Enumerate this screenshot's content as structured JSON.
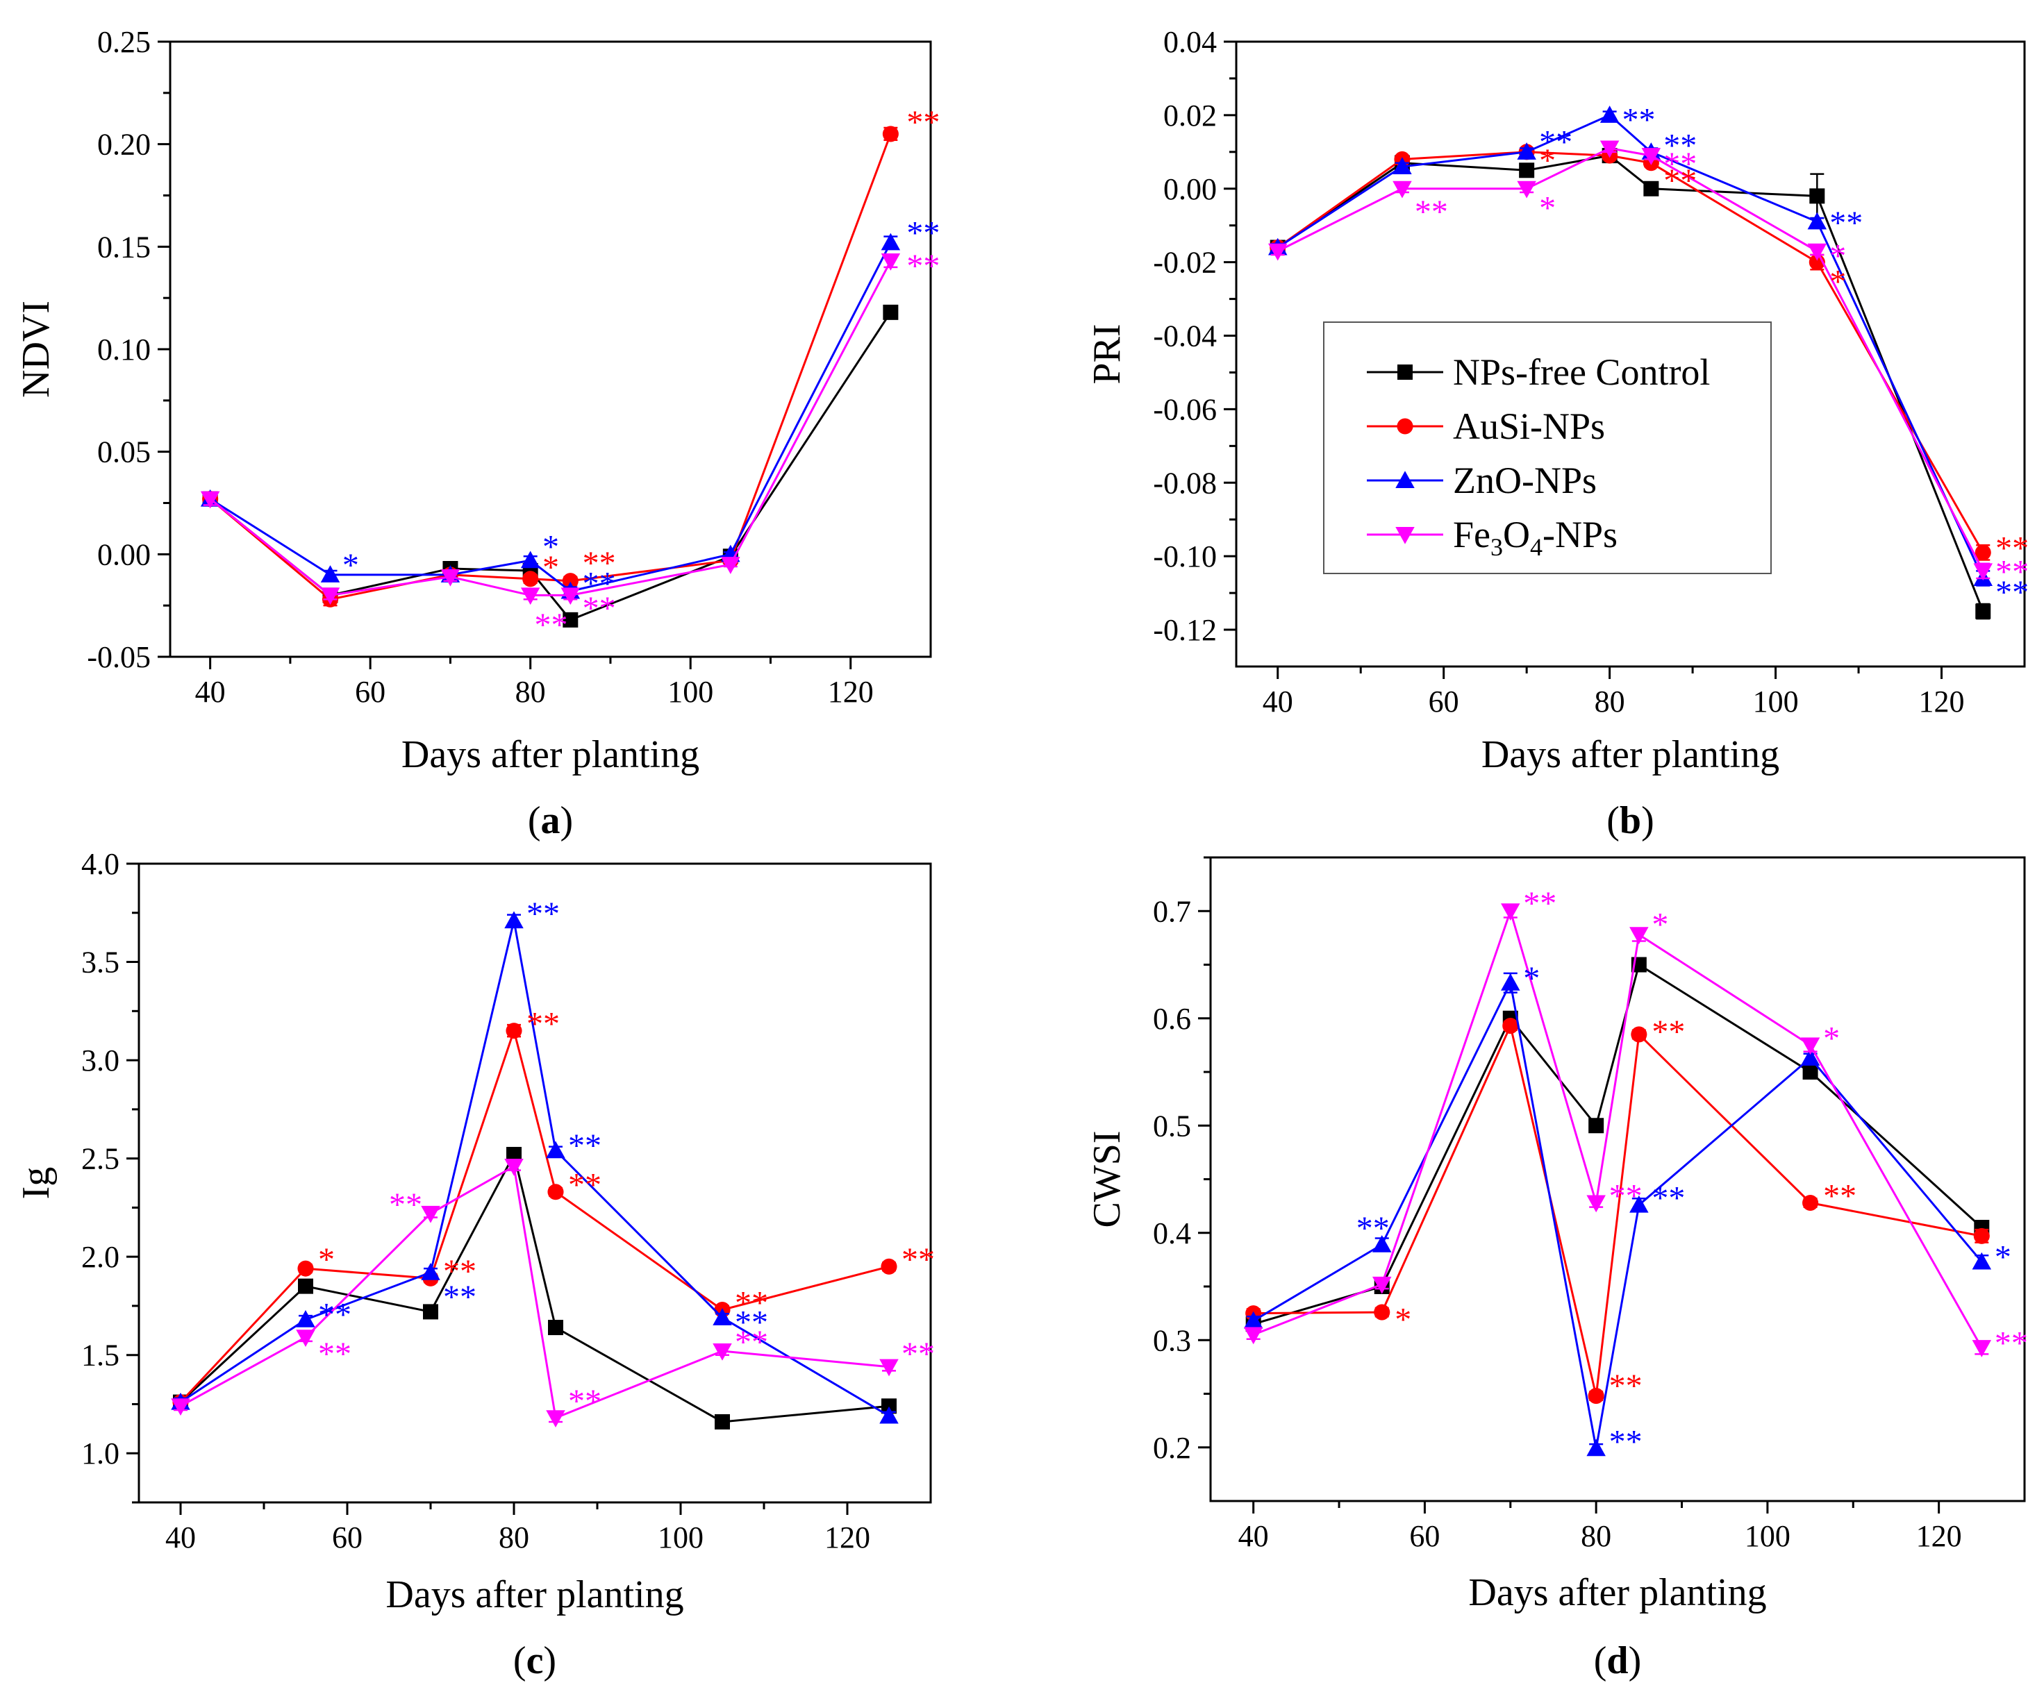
{
  "colors": {
    "control": "#000000",
    "ausi": "#ff0000",
    "zno": "#0000ff",
    "fe3o4": "#ff00ff",
    "axis": "#000000",
    "legend_border": "#555555"
  },
  "legend": {
    "entries": [
      {
        "key": "control",
        "label": "NPs-free Control",
        "marker": "square"
      },
      {
        "key": "ausi",
        "label": "AuSi-NPs",
        "marker": "circle"
      },
      {
        "key": "zno",
        "label": "ZnO-NPs",
        "marker": "triangle-up"
      },
      {
        "key": "fe3o4",
        "label": "Fe3O4-NPs",
        "label_parts": [
          "Fe",
          "3",
          "O",
          "4",
          "-NPs"
        ],
        "marker": "triangle-down"
      }
    ],
    "placement": "panel-b-center-left"
  },
  "chart_data": [
    {
      "id": "a",
      "panel_label": "(a)",
      "panel_letter": "a",
      "type": "line",
      "title": "",
      "xlabel": "Days after planting",
      "ylabel": "NDVI",
      "xlim": [
        35,
        130
      ],
      "ylim": [
        -0.05,
        0.25
      ],
      "xticks": [
        40,
        60,
        80,
        100,
        120
      ],
      "yticks": [
        -0.05,
        0.0,
        0.05,
        0.1,
        0.15,
        0.2,
        0.25
      ],
      "ytick_labels": [
        "-0.05",
        "0.00",
        "0.05",
        "0.10",
        "0.15",
        "0.20",
        "0.25"
      ],
      "x": [
        40,
        55,
        70,
        80,
        85,
        105,
        125
      ],
      "series": [
        {
          "key": "control",
          "name": "NPs-free Control",
          "values": [
            0.027,
            -0.02,
            -0.007,
            -0.008,
            -0.032,
            -0.001,
            0.118
          ],
          "error": [
            0.002,
            0.002,
            0.001,
            0.002,
            0.002,
            0.001,
            0.001
          ]
        },
        {
          "key": "ausi",
          "name": "AuSi-NPs",
          "values": [
            0.027,
            -0.022,
            -0.01,
            -0.012,
            -0.013,
            -0.003,
            0.205
          ],
          "error": [
            0.002,
            0.003,
            0.002,
            0.002,
            0.002,
            0.001,
            0.003
          ]
        },
        {
          "key": "zno",
          "name": "ZnO-NPs",
          "values": [
            0.027,
            -0.01,
            -0.01,
            -0.003,
            -0.018,
            0.0,
            0.152
          ],
          "error": [
            0.002,
            0.002,
            0.002,
            0.002,
            0.002,
            0.001,
            0.003
          ]
        },
        {
          "key": "fe3o4",
          "name": "Fe3O4-NPs",
          "values": [
            0.027,
            -0.02,
            -0.011,
            -0.02,
            -0.02,
            -0.005,
            0.143
          ],
          "error": [
            0.003,
            0.002,
            0.002,
            0.002,
            0.002,
            0.001,
            0.003
          ]
        }
      ],
      "annotations": [
        {
          "text": "**",
          "series": "ausi",
          "x": 127,
          "y": 0.212
        },
        {
          "text": "**",
          "series": "zno",
          "x": 127,
          "y": 0.158
        },
        {
          "text": "**",
          "series": "fe3o4",
          "x": 127,
          "y": 0.142
        },
        {
          "text": "*",
          "series": "zno",
          "x": 56.5,
          "y": -0.004
        },
        {
          "text": "*",
          "series": "zno",
          "x": 81.5,
          "y": 0.005
        },
        {
          "text": "*",
          "series": "ausi",
          "x": 81.5,
          "y": -0.005
        },
        {
          "text": "**",
          "series": "ausi",
          "x": 86.5,
          "y": -0.003
        },
        {
          "text": "**",
          "series": "zno",
          "x": 86.5,
          "y": -0.013
        },
        {
          "text": "**",
          "series": "fe3o4",
          "x": 80.5,
          "y": -0.033
        },
        {
          "text": "**",
          "series": "fe3o4",
          "x": 86.5,
          "y": -0.025
        }
      ]
    },
    {
      "id": "b",
      "panel_label": "(b)",
      "panel_letter": "b",
      "type": "line",
      "title": "",
      "xlabel": "Days after planting",
      "ylabel": "PRI",
      "xlim": [
        35,
        130
      ],
      "ylim": [
        -0.13,
        0.04
      ],
      "xticks": [
        40,
        60,
        80,
        100,
        120
      ],
      "yticks": [
        -0.12,
        -0.1,
        -0.08,
        -0.06,
        -0.04,
        -0.02,
        0.0,
        0.02,
        0.04
      ],
      "ytick_labels": [
        "-0.12",
        "-0.10",
        "-0.08",
        "-0.06",
        "-0.04",
        "-0.02",
        "0.00",
        "0.02",
        "0.04"
      ],
      "x": [
        40,
        55,
        70,
        80,
        85,
        105,
        125
      ],
      "series": [
        {
          "key": "control",
          "name": "NPs-free Control",
          "values": [
            -0.016,
            0.007,
            0.005,
            0.009,
            0.0,
            -0.002,
            -0.115
          ],
          "error": [
            0.001,
            0.001,
            0.001,
            0.001,
            0.001,
            0.006,
            0.002
          ]
        },
        {
          "key": "ausi",
          "name": "AuSi-NPs",
          "values": [
            -0.016,
            0.008,
            0.01,
            0.009,
            0.007,
            -0.02,
            -0.099
          ],
          "error": [
            0.001,
            0.001,
            0.001,
            0.001,
            0.001,
            0.002,
            0.002
          ]
        },
        {
          "key": "zno",
          "name": "ZnO-NPs",
          "values": [
            -0.016,
            0.006,
            0.01,
            0.02,
            0.01,
            -0.009,
            -0.106
          ],
          "error": [
            0.001,
            0.001,
            0.001,
            0.001,
            0.001,
            0.001,
            0.002
          ]
        },
        {
          "key": "fe3o4",
          "name": "Fe3O4-NPs",
          "values": [
            -0.017,
            0.0,
            0.0,
            0.011,
            0.009,
            -0.017,
            -0.104
          ],
          "error": [
            0.001,
            0.001,
            0.001,
            0.001,
            0.001,
            0.001,
            0.002
          ]
        }
      ],
      "annotations": [
        {
          "text": "**",
          "series": "zno",
          "x": 81.5,
          "y": 0.0195
        },
        {
          "text": "**",
          "series": "zno",
          "x": 71.5,
          "y": 0.0135
        },
        {
          "text": "*",
          "series": "ausi",
          "x": 71.5,
          "y": 0.0085
        },
        {
          "text": "**",
          "series": "zno",
          "x": 86.5,
          "y": 0.0125
        },
        {
          "text": "**",
          "series": "fe3o4",
          "x": 86.5,
          "y": 0.0075
        },
        {
          "text": "**",
          "series": "ausi",
          "x": 86.5,
          "y": 0.003
        },
        {
          "text": "**",
          "series": "fe3o4",
          "x": 56.5,
          "y": -0.0055
        },
        {
          "text": "*",
          "series": "fe3o4",
          "x": 71.5,
          "y": -0.0045
        },
        {
          "text": "**",
          "series": "zno",
          "x": 106.5,
          "y": -0.0085
        },
        {
          "text": "*",
          "series": "fe3o4",
          "x": 106.5,
          "y": -0.0175
        },
        {
          "text": "*",
          "series": "ausi",
          "x": 106.5,
          "y": -0.0245
        },
        {
          "text": "**",
          "series": "ausi",
          "x": 126.5,
          "y": -0.097
        },
        {
          "text": "**",
          "series": "fe3o4",
          "x": 126.5,
          "y": -0.1035
        },
        {
          "text": "**",
          "series": "zno",
          "x": 126.5,
          "y": -0.109
        }
      ]
    },
    {
      "id": "c",
      "panel_label": "(c)",
      "panel_letter": "c",
      "type": "line",
      "title": "",
      "xlabel": "Days after planting",
      "ylabel": "Ig",
      "xlim": [
        35,
        130
      ],
      "ylim": [
        0.75,
        4.0
      ],
      "xticks": [
        40,
        60,
        80,
        100,
        120
      ],
      "yticks": [
        1.0,
        1.5,
        2.0,
        2.5,
        3.0,
        3.5,
        4.0
      ],
      "ytick_labels": [
        "1.0",
        "1.5",
        "2.0",
        "2.5",
        "3.0",
        "3.5",
        "4.0"
      ],
      "x": [
        40,
        55,
        70,
        80,
        85,
        105,
        125
      ],
      "series": [
        {
          "key": "control",
          "name": "NPs-free Control",
          "values": [
            1.26,
            1.85,
            1.72,
            2.52,
            1.64,
            1.16,
            1.24
          ],
          "error": [
            0.02,
            0.02,
            0.02,
            0.02,
            0.02,
            0.02,
            0.02
          ]
        },
        {
          "key": "ausi",
          "name": "AuSi-NPs",
          "values": [
            1.26,
            1.94,
            1.89,
            3.15,
            2.33,
            1.73,
            1.95
          ],
          "error": [
            0.02,
            0.02,
            0.02,
            0.03,
            0.02,
            0.02,
            0.02
          ]
        },
        {
          "key": "zno",
          "name": "ZnO-NPs",
          "values": [
            1.26,
            1.68,
            1.92,
            3.71,
            2.54,
            1.69,
            1.19
          ],
          "error": [
            0.02,
            0.02,
            0.02,
            0.03,
            0.02,
            0.02,
            0.02
          ]
        },
        {
          "key": "fe3o4",
          "name": "Fe3O4-NPs",
          "values": [
            1.24,
            1.59,
            2.22,
            2.46,
            1.18,
            1.52,
            1.44
          ],
          "error": [
            0.02,
            0.02,
            0.02,
            0.02,
            0.02,
            0.02,
            0.02
          ]
        }
      ],
      "annotations": [
        {
          "text": "*",
          "series": "ausi",
          "x": 56.5,
          "y": 2.0
        },
        {
          "text": "**",
          "series": "zno",
          "x": 56.5,
          "y": 1.72
        },
        {
          "text": "**",
          "series": "fe3o4",
          "x": 56.5,
          "y": 1.52
        },
        {
          "text": "**",
          "series": "fe3o4",
          "x": 65,
          "y": 2.28
        },
        {
          "text": "**",
          "series": "ausi",
          "x": 71.5,
          "y": 1.94
        },
        {
          "text": "**",
          "series": "zno",
          "x": 71.5,
          "y": 1.81
        },
        {
          "text": "**",
          "series": "zno",
          "x": 81.5,
          "y": 3.76
        },
        {
          "text": "**",
          "series": "ausi",
          "x": 81.5,
          "y": 3.2
        },
        {
          "text": "**",
          "series": "zno",
          "x": 86.5,
          "y": 2.58
        },
        {
          "text": "**",
          "series": "ausi",
          "x": 86.5,
          "y": 2.38
        },
        {
          "text": "**",
          "series": "fe3o4",
          "x": 86.5,
          "y": 1.28
        },
        {
          "text": "**",
          "series": "ausi",
          "x": 106.5,
          "y": 1.78
        },
        {
          "text": "**",
          "series": "zno",
          "x": 106.5,
          "y": 1.68
        },
        {
          "text": "**",
          "series": "fe3o4",
          "x": 106.5,
          "y": 1.58
        },
        {
          "text": "**",
          "series": "ausi",
          "x": 126.5,
          "y": 2.0
        },
        {
          "text": "**",
          "series": "fe3o4",
          "x": 126.5,
          "y": 1.52
        }
      ]
    },
    {
      "id": "d",
      "panel_label": "(d)",
      "panel_letter": "d",
      "type": "line",
      "title": "",
      "xlabel": "Days after planting",
      "ylabel": "CWSI",
      "xlim": [
        35,
        130
      ],
      "ylim": [
        0.15,
        0.75
      ],
      "xticks": [
        40,
        60,
        80,
        100,
        120
      ],
      "yticks": [
        0.2,
        0.3,
        0.4,
        0.5,
        0.6,
        0.7
      ],
      "ytick_labels": [
        "0.2",
        "0.3",
        "0.4",
        "0.5",
        "0.6",
        "0.7"
      ],
      "x": [
        40,
        55,
        70,
        80,
        85,
        105,
        125
      ],
      "series": [
        {
          "key": "control",
          "name": "NPs-free Control",
          "values": [
            0.315,
            0.35,
            0.6,
            0.5,
            0.65,
            0.55,
            0.405
          ],
          "error": [
            0.004,
            0.004,
            0.004,
            0.004,
            0.004,
            0.004,
            0.006
          ]
        },
        {
          "key": "ausi",
          "name": "AuSi-NPs",
          "values": [
            0.325,
            0.326,
            0.593,
            0.248,
            0.585,
            0.428,
            0.397
          ],
          "error": [
            0.004,
            0.004,
            0.004,
            0.004,
            0.004,
            0.004,
            0.006
          ]
        },
        {
          "key": "zno",
          "name": "ZnO-NPs",
          "values": [
            0.318,
            0.389,
            0.633,
            0.199,
            0.426,
            0.563,
            0.373
          ],
          "error": [
            0.004,
            0.006,
            0.009,
            0.004,
            0.006,
            0.004,
            0.006
          ]
        },
        {
          "key": "fe3o4",
          "name": "Fe3O4-NPs",
          "values": [
            0.305,
            0.352,
            0.7,
            0.428,
            0.678,
            0.575,
            0.293
          ],
          "error": [
            0.004,
            0.004,
            0.006,
            0.004,
            0.006,
            0.006,
            0.006
          ]
        }
      ],
      "annotations": [
        {
          "text": "**",
          "series": "zno",
          "x": 52,
          "y": 0.407
        },
        {
          "text": "*",
          "series": "ausi",
          "x": 56.5,
          "y": 0.322
        },
        {
          "text": "**",
          "series": "fe3o4",
          "x": 71.5,
          "y": 0.71
        },
        {
          "text": "*",
          "series": "zno",
          "x": 71.5,
          "y": 0.64
        },
        {
          "text": "**",
          "series": "ausi",
          "x": 81.5,
          "y": 0.26
        },
        {
          "text": "**",
          "series": "zno",
          "x": 81.5,
          "y": 0.208
        },
        {
          "text": "**",
          "series": "fe3o4",
          "x": 81.5,
          "y": 0.437
        },
        {
          "text": "*",
          "series": "fe3o4",
          "x": 86.5,
          "y": 0.69
        },
        {
          "text": "**",
          "series": "ausi",
          "x": 86.5,
          "y": 0.59
        },
        {
          "text": "**",
          "series": "zno",
          "x": 86.5,
          "y": 0.435
        },
        {
          "text": "*",
          "series": "fe3o4",
          "x": 106.5,
          "y": 0.584
        },
        {
          "text": "**",
          "series": "ausi",
          "x": 106.5,
          "y": 0.437
        },
        {
          "text": "*",
          "series": "zno",
          "x": 126.5,
          "y": 0.38
        },
        {
          "text": "**",
          "series": "fe3o4",
          "x": 126.5,
          "y": 0.3
        }
      ]
    }
  ]
}
